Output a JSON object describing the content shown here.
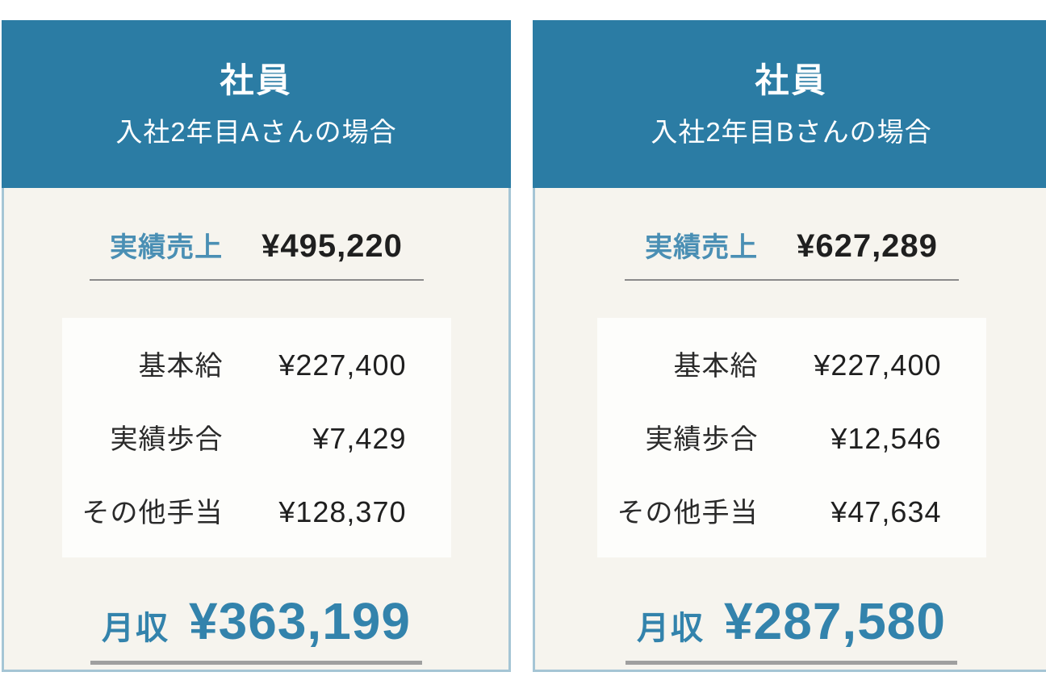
{
  "colors": {
    "header_bg": "#2b7ca4",
    "card_bg": "#f6f4ee",
    "card_border": "#a5c5d5",
    "inner_bg": "#fdfdfb",
    "accent": "#4a8fb4",
    "accent_strong": "#3383ac",
    "value_text": "#1f1f1f",
    "underline_thin": "#8a8a8a",
    "underline_thick": "#9f9f9f"
  },
  "cards": [
    {
      "title": "社員",
      "subtitle": "入社2年目Aさんの場合",
      "sales_label": "実績売上",
      "sales_value": "¥495,220",
      "breakdown": [
        {
          "label": "基本給",
          "value": "¥227,400"
        },
        {
          "label": "実績歩合",
          "value": "¥7,429"
        },
        {
          "label": "その他手当",
          "value": "¥128,370"
        }
      ],
      "total_label": "月収",
      "total_value": "¥363,199"
    },
    {
      "title": "社員",
      "subtitle": "入社2年目Bさんの場合",
      "sales_label": "実績売上",
      "sales_value": "¥627,289",
      "breakdown": [
        {
          "label": "基本給",
          "value": "¥227,400"
        },
        {
          "label": "実績歩合",
          "value": "¥12,546"
        },
        {
          "label": "その他手当",
          "value": "¥47,634"
        }
      ],
      "total_label": "月収",
      "total_value": "¥287,580"
    }
  ]
}
